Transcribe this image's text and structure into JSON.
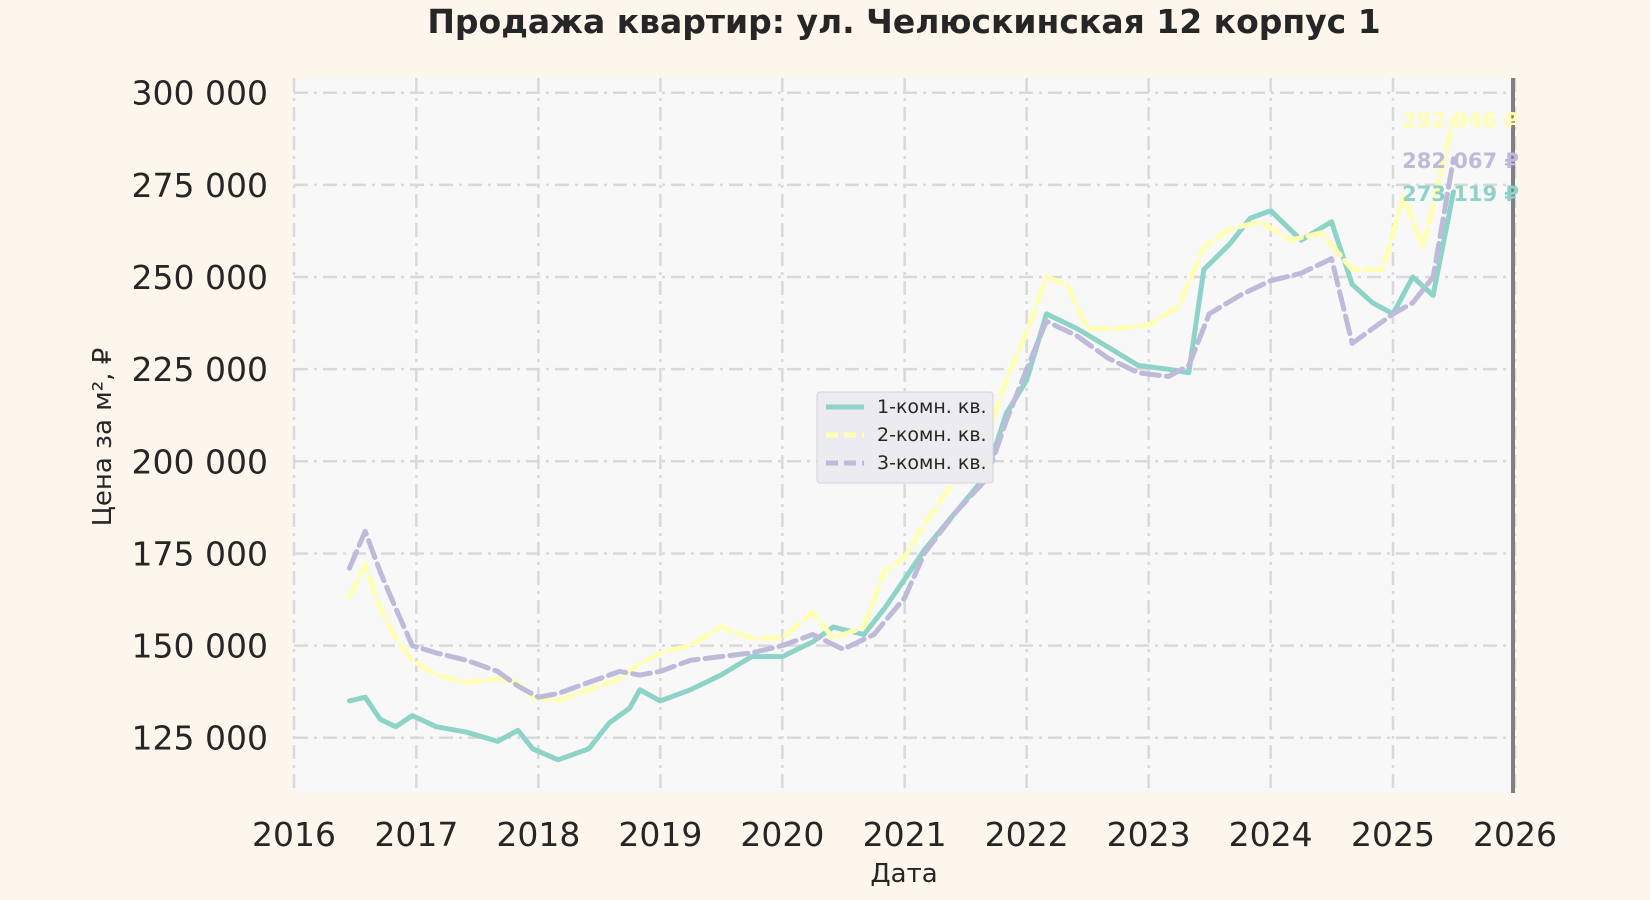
{
  "chart_data": {
    "type": "line",
    "title": "Продажа квартир: ул. Челюскинская 12 корпус 1",
    "xlabel": "Дата",
    "ylabel": "Цена за м², ₽",
    "x_ticks": [
      "2016",
      "2017",
      "2018",
      "2019",
      "2020",
      "2021",
      "2022",
      "2023",
      "2024",
      "2025",
      "2026"
    ],
    "y_ticks": [
      "125 000",
      "150 000",
      "175 000",
      "200 000",
      "225 000",
      "250 000",
      "275 000",
      "300 000"
    ],
    "xlim": [
      "2016-01-01",
      "2026-01-01"
    ],
    "ylim": [
      110000,
      304000
    ],
    "grid": true,
    "legend_position": "center",
    "series": [
      {
        "name": "1-комн. кв.",
        "color": "#8dd3c7",
        "dash": "solid",
        "end_label": "273 119 ₽",
        "points": [
          [
            "2016-06-15",
            135000
          ],
          [
            "2016-08-01",
            136000
          ],
          [
            "2016-09-15",
            130000
          ],
          [
            "2016-11-01",
            128000
          ],
          [
            "2016-12-20",
            131000
          ],
          [
            "2017-03-01",
            128000
          ],
          [
            "2017-06-01",
            126500
          ],
          [
            "2017-09-01",
            124000
          ],
          [
            "2017-11-01",
            127000
          ],
          [
            "2017-12-15",
            122000
          ],
          [
            "2018-03-01",
            119000
          ],
          [
            "2018-06-01",
            122000
          ],
          [
            "2018-08-01",
            129000
          ],
          [
            "2018-10-01",
            133000
          ],
          [
            "2018-11-01",
            138000
          ],
          [
            "2019-01-01",
            135000
          ],
          [
            "2019-04-01",
            138000
          ],
          [
            "2019-07-01",
            142000
          ],
          [
            "2019-10-01",
            147000
          ],
          [
            "2020-01-01",
            147000
          ],
          [
            "2020-04-01",
            151000
          ],
          [
            "2020-06-01",
            155000
          ],
          [
            "2020-09-01",
            153000
          ],
          [
            "2020-11-01",
            160000
          ],
          [
            "2021-01-01",
            168000
          ],
          [
            "2021-03-01",
            176000
          ],
          [
            "2021-06-01",
            186000
          ],
          [
            "2021-09-01",
            196000
          ],
          [
            "2021-11-01",
            213000
          ],
          [
            "2022-01-01",
            222000
          ],
          [
            "2022-03-01",
            240000
          ],
          [
            "2022-06-01",
            236000
          ],
          [
            "2022-09-01",
            231000
          ],
          [
            "2022-12-01",
            226000
          ],
          [
            "2023-03-01",
            225000
          ],
          [
            "2023-05-01",
            224000
          ],
          [
            "2023-06-15",
            252000
          ],
          [
            "2023-09-01",
            259000
          ],
          [
            "2023-11-01",
            266000
          ],
          [
            "2024-01-01",
            268000
          ],
          [
            "2024-04-01",
            260000
          ],
          [
            "2024-07-01",
            265000
          ],
          [
            "2024-09-01",
            248000
          ],
          [
            "2024-11-01",
            243000
          ],
          [
            "2025-01-01",
            240000
          ],
          [
            "2025-03-01",
            250000
          ],
          [
            "2025-05-01",
            245000
          ],
          [
            "2025-07-01",
            273119
          ]
        ]
      },
      {
        "name": "2-комн. кв.",
        "color": "#ffffb3",
        "dash": "dashed",
        "end_label": "292 946 ₽",
        "points": [
          [
            "2016-06-15",
            163000
          ],
          [
            "2016-08-01",
            172000
          ],
          [
            "2016-09-15",
            160000
          ],
          [
            "2016-11-01",
            152000
          ],
          [
            "2016-12-20",
            146000
          ],
          [
            "2017-03-01",
            142000
          ],
          [
            "2017-06-01",
            140000
          ],
          [
            "2017-09-01",
            141000
          ],
          [
            "2017-11-01",
            140000
          ],
          [
            "2017-12-15",
            136000
          ],
          [
            "2018-03-01",
            135000
          ],
          [
            "2018-06-01",
            138000
          ],
          [
            "2018-09-01",
            141000
          ],
          [
            "2018-11-01",
            145000
          ],
          [
            "2019-01-01",
            148000
          ],
          [
            "2019-04-01",
            150000
          ],
          [
            "2019-07-01",
            155000
          ],
          [
            "2019-10-01",
            152000
          ],
          [
            "2020-01-01",
            152000
          ],
          [
            "2020-04-01",
            159000
          ],
          [
            "2020-06-01",
            152000
          ],
          [
            "2020-09-01",
            155000
          ],
          [
            "2020-11-01",
            170000
          ],
          [
            "2021-01-01",
            174000
          ],
          [
            "2021-03-01",
            183000
          ],
          [
            "2021-06-01",
            195000
          ],
          [
            "2021-09-01",
            206000
          ],
          [
            "2021-11-01",
            222000
          ],
          [
            "2022-01-01",
            235000
          ],
          [
            "2022-03-01",
            250000
          ],
          [
            "2022-05-01",
            248000
          ],
          [
            "2022-07-01",
            236000
          ],
          [
            "2022-10-01",
            236000
          ],
          [
            "2023-01-01",
            237000
          ],
          [
            "2023-04-01",
            242000
          ],
          [
            "2023-06-15",
            258000
          ],
          [
            "2023-09-01",
            263000
          ],
          [
            "2023-12-01",
            265000
          ],
          [
            "2024-03-01",
            260000
          ],
          [
            "2024-06-01",
            262000
          ],
          [
            "2024-09-01",
            252000
          ],
          [
            "2024-12-01",
            252000
          ],
          [
            "2025-02-01",
            272000
          ],
          [
            "2025-04-01",
            258000
          ],
          [
            "2025-07-01",
            292946
          ]
        ]
      },
      {
        "name": "3-комн. кв.",
        "color": "#bebada",
        "dash": "dashed",
        "end_label": "282 067 ₽",
        "points": [
          [
            "2016-06-15",
            171000
          ],
          [
            "2016-08-01",
            181000
          ],
          [
            "2016-09-15",
            170000
          ],
          [
            "2016-11-01",
            160000
          ],
          [
            "2016-12-20",
            150000
          ],
          [
            "2017-03-01",
            148000
          ],
          [
            "2017-06-01",
            146000
          ],
          [
            "2017-09-01",
            143000
          ],
          [
            "2017-11-01",
            139000
          ],
          [
            "2018-01-01",
            136000
          ],
          [
            "2018-03-01",
            137000
          ],
          [
            "2018-06-01",
            140000
          ],
          [
            "2018-09-01",
            143000
          ],
          [
            "2018-11-01",
            142000
          ],
          [
            "2019-01-01",
            143000
          ],
          [
            "2019-04-01",
            146000
          ],
          [
            "2019-07-01",
            147000
          ],
          [
            "2019-10-01",
            148000
          ],
          [
            "2020-01-01",
            150000
          ],
          [
            "2020-04-01",
            153000
          ],
          [
            "2020-07-01",
            149000
          ],
          [
            "2020-10-01",
            153000
          ],
          [
            "2021-01-01",
            163000
          ],
          [
            "2021-03-01",
            175000
          ],
          [
            "2021-06-01",
            186000
          ],
          [
            "2021-09-01",
            195000
          ],
          [
            "2021-11-01",
            211000
          ],
          [
            "2022-01-01",
            225000
          ],
          [
            "2022-03-01",
            238000
          ],
          [
            "2022-06-01",
            234000
          ],
          [
            "2022-09-01",
            228000
          ],
          [
            "2022-12-01",
            224000
          ],
          [
            "2023-03-01",
            223000
          ],
          [
            "2023-05-01",
            226000
          ],
          [
            "2023-07-01",
            240000
          ],
          [
            "2023-10-01",
            245000
          ],
          [
            "2024-01-01",
            249000
          ],
          [
            "2024-04-01",
            251000
          ],
          [
            "2024-07-01",
            255000
          ],
          [
            "2024-09-01",
            232000
          ],
          [
            "2024-11-01",
            236000
          ],
          [
            "2025-01-01",
            240000
          ],
          [
            "2025-03-01",
            243000
          ],
          [
            "2025-05-01",
            250000
          ],
          [
            "2025-07-01",
            282067
          ]
        ]
      }
    ]
  }
}
